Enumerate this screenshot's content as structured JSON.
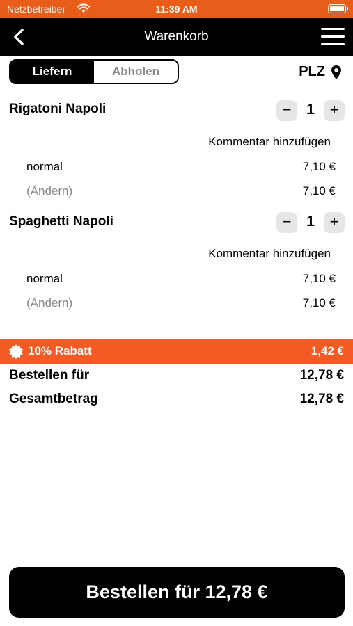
{
  "status_bar": {
    "carrier": "Netzbetreiber",
    "time": "11:39 AM"
  },
  "nav": {
    "title": "Warenkorb"
  },
  "delivery_toggle": {
    "options": [
      "Liefern",
      "Abholen"
    ],
    "selected": "Liefern"
  },
  "plz": {
    "label": "PLZ"
  },
  "cart": {
    "items": [
      {
        "name": "Rigatoni Napoli",
        "quantity": "1",
        "comment_label": "Kommentar hinzufügen",
        "variant": "normal",
        "variant_price": "7,10 €",
        "change_label": "(Ändern)",
        "item_price": "7,10 €"
      },
      {
        "name": "Spaghetti Napoli",
        "quantity": "1",
        "comment_label": "Kommentar hinzufügen",
        "variant": "normal",
        "variant_price": "7,10 €",
        "change_label": "(Ändern)",
        "item_price": "7,10 €"
      }
    ]
  },
  "discount": {
    "label": "10% Rabatt",
    "value": "1,42 €"
  },
  "summary": {
    "order_for_label": "Bestellen für",
    "order_for_value": "12,78 €",
    "total_label": "Gesamtbetrag",
    "total_value": "12,78 €"
  },
  "order_button": {
    "label": "Bestellen für 12,78 €"
  },
  "colors": {
    "status_bar": "#e85d1a",
    "discount_bar": "#f45a24",
    "nav_bar": "#000000",
    "button": "#000000"
  },
  "icons": [
    "wifi-icon",
    "battery-icon",
    "back-chevron-icon",
    "hamburger-menu-icon",
    "location-pin-icon",
    "minus-icon",
    "plus-icon",
    "discount-badge-icon"
  ]
}
